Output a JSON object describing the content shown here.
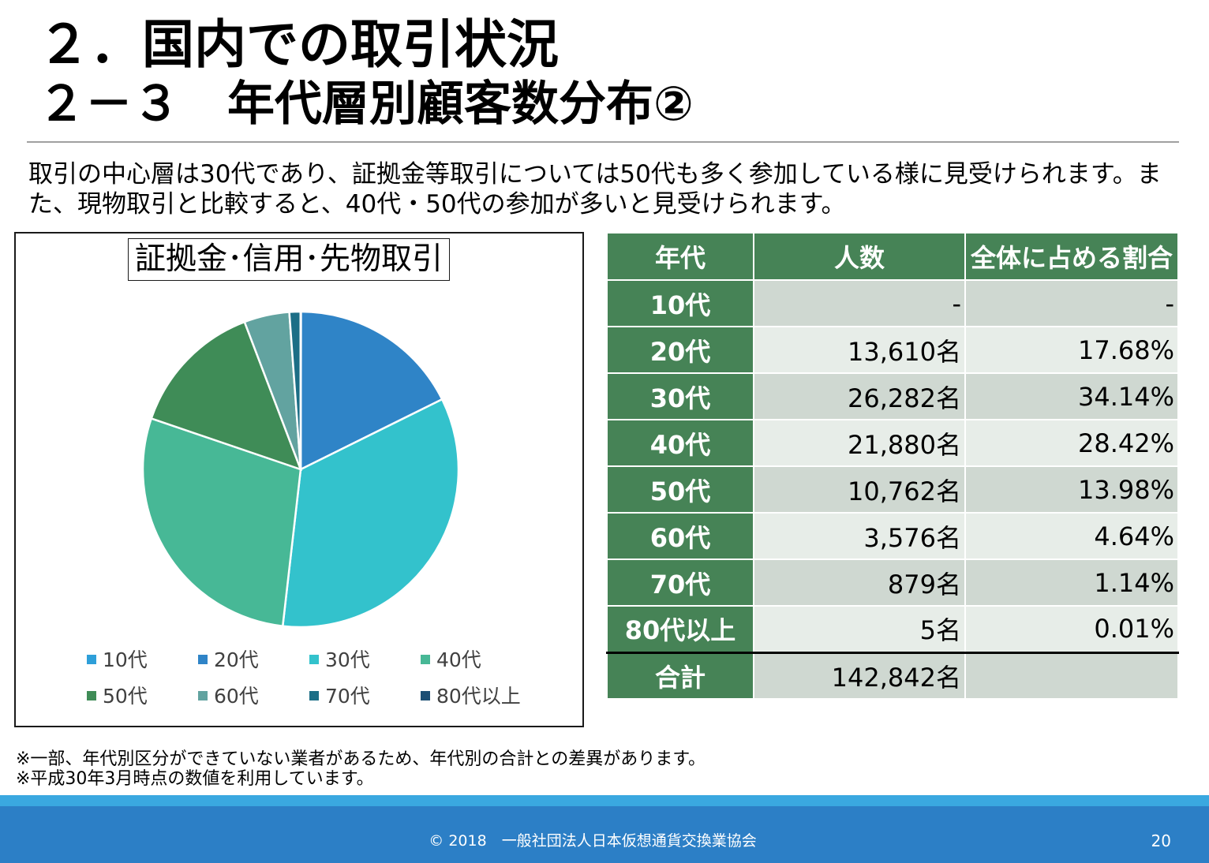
{
  "header": {
    "title": "２．国内での取引状況",
    "subtitle": "２－３　年代層別顧客数分布②"
  },
  "description": "取引の中心層は30代であり、証拠金等取引については50代も多く参加している様に見受けられます。また、現物取引と比較すると、40代・50代の参加が多いと見受けられます。",
  "chart_data": {
    "type": "pie",
    "title": "証拠金･信用･先物取引",
    "categories": [
      "10代",
      "20代",
      "30代",
      "40代",
      "50代",
      "60代",
      "70代",
      "80代以上"
    ],
    "values": [
      0,
      17.68,
      34.14,
      28.42,
      13.98,
      4.64,
      1.14,
      0.01
    ],
    "colors": [
      "#2e9fd9",
      "#2f84c7",
      "#33c2cc",
      "#47b896",
      "#3f8c57",
      "#62a3a0",
      "#1c6e86",
      "#1d4f74"
    ],
    "legend_position": "bottom"
  },
  "table": {
    "headers": [
      "年代",
      "人数",
      "全体に占める割合"
    ],
    "rows": [
      {
        "age": "10代",
        "count": "-",
        "ratio": "-"
      },
      {
        "age": "20代",
        "count": "13,610名",
        "ratio": "17.68%"
      },
      {
        "age": "30代",
        "count": "26,282名",
        "ratio": "34.14%"
      },
      {
        "age": "40代",
        "count": "21,880名",
        "ratio": "28.42%"
      },
      {
        "age": "50代",
        "count": "10,762名",
        "ratio": "13.98%"
      },
      {
        "age": "60代",
        "count": "3,576名",
        "ratio": "4.64%"
      },
      {
        "age": "70代",
        "count": "879名",
        "ratio": "1.14%"
      },
      {
        "age": "80代以上",
        "count": "5名",
        "ratio": "0.01%"
      }
    ],
    "total": {
      "label": "合計",
      "count": "142,842名",
      "ratio": ""
    }
  },
  "notes": [
    "※一部、年代別区分ができていない業者があるため、年代別の合計との差異があります。",
    "※平成30年3月時点の数値を利用しています。"
  ],
  "footer": {
    "copyright": "© 2018　一般社団法人日本仮想通貨交換業協会",
    "page_number": "20"
  }
}
